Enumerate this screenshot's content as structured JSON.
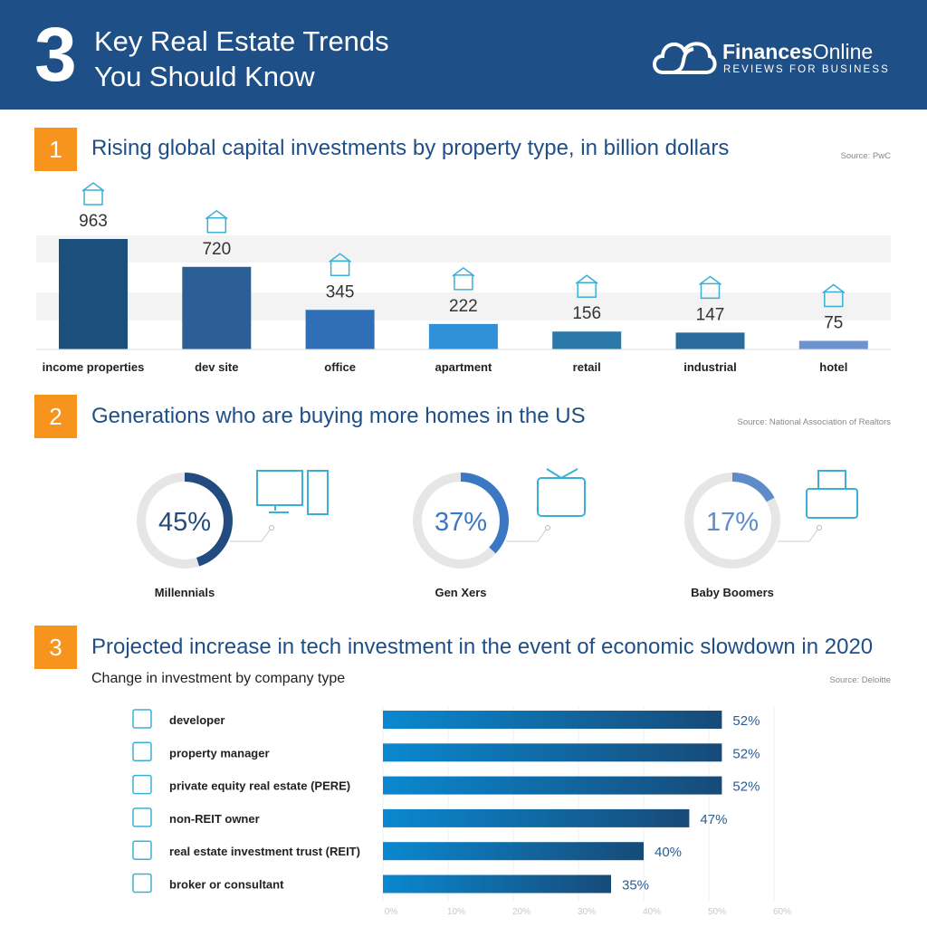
{
  "header": {
    "number": "3",
    "title_line1": "Key Real Estate Trends",
    "title_line2": "You Should Know",
    "brand_bold": "Finances",
    "brand_light": "Online",
    "tagline": "REVIEWS FOR BUSINESS",
    "bg_color": "#1f4f87"
  },
  "accent_color": "#f7941d",
  "sections": [
    {
      "number": "1",
      "title": "Rising global capital investments by property type, in billion dollars",
      "source": "Source: PwC"
    },
    {
      "number": "2",
      "title": "Generations who are buying more homes in the US",
      "source": "Source: National Association of Realtors"
    },
    {
      "number": "3",
      "title": "Projected increase in tech investment in the event of economic slowdown in 2020",
      "subtitle": "Change in investment by company type",
      "source": "Source: Deloitte"
    }
  ],
  "chart_data": [
    {
      "type": "bar",
      "title": "Rising global capital investments by property type, in billion dollars",
      "categories": [
        "income properties",
        "dev site",
        "office",
        "apartment",
        "retail",
        "industrial",
        "hotel"
      ],
      "values": [
        963,
        720,
        345,
        222,
        156,
        147,
        75
      ],
      "labels": [
        "963",
        "720",
        "345",
        "222",
        "156",
        "147",
        "75"
      ],
      "colors": [
        "#1d4f7c",
        "#2b5f95",
        "#2e6fb5",
        "#3191d8",
        "#2b79aa",
        "#2b6c9c",
        "#6c93d0"
      ],
      "icons": [
        "money-hand-icon",
        "dev-site-icon",
        "office-building-icon",
        "apartment-icon",
        "retail-store-icon",
        "factory-icon",
        "hotel-icon"
      ]
    },
    {
      "type": "pie",
      "subtype": "donut",
      "categories": [
        "Millennials",
        "Gen Xers",
        "Baby Boomers"
      ],
      "values": [
        45,
        37,
        17
      ],
      "labels": [
        "45%",
        "37%",
        "17%"
      ],
      "colors": [
        "#244b80",
        "#3a78c4",
        "#5e8cc8"
      ],
      "icons": [
        "desktop-computer-icon",
        "television-icon",
        "typewriter-icon"
      ]
    },
    {
      "type": "bar",
      "orientation": "horizontal",
      "subtitle": "Change in investment by company type",
      "categories": [
        "developer",
        "property manager",
        "private equity real estate (PERE)",
        "non-REIT owner",
        "real estate investment trust (REIT)",
        "broker or consultant"
      ],
      "values": [
        52,
        52,
        52,
        47,
        40,
        35
      ],
      "labels": [
        "52%",
        "52%",
        "52%",
        "47%",
        "40%",
        "35%"
      ],
      "xlim": [
        0,
        60
      ],
      "ticks": [
        "0%",
        "10%",
        "20%",
        "30%",
        "40%",
        "50%",
        "60%"
      ],
      "grid": true,
      "icons": [
        "crane-building-icon",
        "hand-key-icon",
        "house-icon",
        "house-money-icon",
        "bank-dollar-icon",
        "person-icon"
      ]
    }
  ]
}
